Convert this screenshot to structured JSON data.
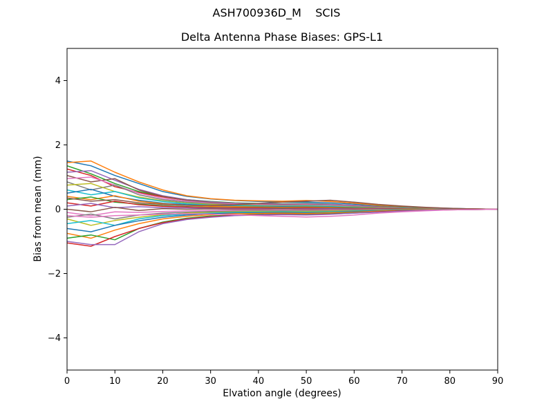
{
  "chart_data": {
    "type": "line",
    "suptitle": "ASH700936D_M    SCIS",
    "title": "Delta Antenna Phase Biases: GPS-L1",
    "xlabel": "Elvation angle (degrees)",
    "ylabel": "Bias from mean (mm)",
    "xlim": [
      0,
      90
    ],
    "ylim": [
      -5,
      5
    ],
    "xticks": [
      0,
      10,
      20,
      30,
      40,
      50,
      60,
      70,
      80,
      90
    ],
    "yticks": [
      -4,
      -2,
      0,
      2,
      4
    ],
    "grid": false,
    "legend": "none",
    "colors": [
      "#1f77b4",
      "#ff7f0e",
      "#2ca02c",
      "#d62728",
      "#9467bd",
      "#8c564b",
      "#e377c2",
      "#7f7f7f",
      "#bcbd22",
      "#17becf"
    ],
    "x": [
      0,
      5,
      10,
      15,
      20,
      25,
      30,
      35,
      40,
      45,
      50,
      55,
      60,
      65,
      70,
      75,
      80,
      85,
      90
    ],
    "series": [
      [
        1.5,
        1.35,
        1.05,
        0.8,
        0.55,
        0.4,
        0.32,
        0.27,
        0.24,
        0.22,
        0.22,
        0.2,
        0.16,
        0.12,
        0.08,
        0.05,
        0.03,
        0.01,
        0.0
      ],
      [
        1.45,
        1.5,
        1.15,
        0.85,
        0.6,
        0.42,
        0.33,
        0.28,
        0.26,
        0.25,
        0.27,
        0.24,
        0.19,
        0.13,
        0.09,
        0.05,
        0.02,
        0.01,
        0.0
      ],
      [
        1.35,
        1.1,
        0.8,
        0.55,
        0.4,
        0.3,
        0.24,
        0.2,
        0.18,
        0.17,
        0.18,
        0.16,
        0.12,
        0.09,
        0.06,
        0.04,
        0.02,
        0.01,
        0.0
      ],
      [
        1.25,
        1.05,
        0.7,
        0.52,
        0.38,
        0.28,
        0.22,
        0.18,
        0.16,
        0.15,
        0.16,
        0.14,
        0.11,
        0.08,
        0.05,
        0.03,
        0.02,
        0.01,
        0.0
      ],
      [
        1.15,
        1.2,
        0.9,
        0.62,
        0.42,
        0.3,
        0.23,
        0.19,
        0.17,
        0.16,
        0.17,
        0.15,
        0.12,
        0.08,
        0.05,
        0.03,
        0.01,
        0.0,
        0.0
      ],
      [
        1.05,
        0.85,
        0.95,
        0.6,
        0.4,
        0.28,
        0.21,
        0.17,
        0.15,
        0.14,
        0.15,
        0.13,
        0.1,
        0.07,
        0.05,
        0.03,
        0.01,
        0.0,
        0.0
      ],
      [
        0.95,
        1.0,
        0.75,
        0.5,
        0.34,
        0.25,
        0.19,
        0.16,
        0.14,
        0.13,
        0.14,
        0.12,
        0.09,
        0.06,
        0.04,
        0.02,
        0.01,
        0.0,
        0.0
      ],
      [
        0.85,
        0.6,
        0.75,
        0.45,
        0.3,
        0.22,
        0.17,
        0.14,
        0.12,
        0.11,
        0.12,
        0.1,
        0.08,
        0.05,
        0.03,
        0.02,
        0.01,
        0.0,
        0.0
      ],
      [
        0.75,
        0.8,
        0.55,
        0.38,
        0.26,
        0.19,
        0.15,
        0.12,
        0.11,
        0.1,
        0.11,
        0.1,
        0.07,
        0.05,
        0.03,
        0.02,
        0.01,
        0.0,
        0.0
      ],
      [
        0.6,
        0.45,
        0.55,
        0.35,
        0.24,
        0.17,
        0.13,
        0.11,
        0.1,
        0.09,
        0.1,
        0.09,
        0.06,
        0.04,
        0.03,
        0.01,
        0.01,
        0.0,
        0.0
      ],
      [
        0.5,
        0.62,
        0.4,
        0.28,
        0.19,
        0.14,
        0.11,
        0.09,
        0.08,
        0.08,
        0.08,
        0.07,
        0.05,
        0.04,
        0.02,
        0.01,
        0.0,
        0.0,
        0.0
      ],
      [
        0.4,
        0.3,
        0.42,
        0.25,
        0.17,
        0.12,
        0.09,
        0.08,
        0.07,
        0.06,
        0.07,
        0.06,
        0.04,
        0.03,
        0.02,
        0.01,
        0.0,
        0.0,
        0.0
      ],
      [
        0.3,
        0.38,
        0.22,
        0.16,
        0.11,
        0.08,
        0.06,
        0.05,
        0.05,
        0.04,
        0.05,
        0.04,
        0.03,
        0.02,
        0.01,
        0.01,
        0.0,
        0.0,
        0.0
      ],
      [
        0.2,
        0.1,
        0.25,
        0.14,
        0.09,
        0.07,
        0.05,
        0.04,
        0.04,
        0.03,
        0.04,
        0.03,
        0.02,
        0.02,
        0.01,
        0.0,
        0.0,
        0.0,
        0.0
      ],
      [
        0.1,
        0.18,
        0.05,
        0.08,
        0.05,
        0.04,
        0.03,
        0.02,
        0.02,
        0.02,
        0.02,
        0.02,
        0.01,
        0.01,
        0.0,
        0.0,
        0.0,
        0.0,
        0.0
      ],
      [
        0.0,
        -0.08,
        0.06,
        -0.04,
        0.02,
        0.0,
        0.01,
        0.0,
        0.0,
        0.01,
        0.0,
        0.0,
        0.0,
        0.0,
        0.0,
        0.0,
        0.0,
        0.0,
        0.0
      ],
      [
        -0.1,
        -0.2,
        -0.08,
        -0.1,
        -0.07,
        -0.05,
        -0.04,
        -0.03,
        -0.03,
        -0.03,
        -0.03,
        -0.02,
        -0.02,
        -0.01,
        -0.01,
        0.0,
        0.0,
        0.0,
        0.0
      ],
      [
        -0.25,
        -0.15,
        -0.3,
        -0.18,
        -0.12,
        -0.09,
        -0.07,
        -0.06,
        -0.05,
        -0.05,
        -0.05,
        -0.04,
        -0.03,
        -0.02,
        -0.01,
        -0.01,
        0.0,
        0.0,
        0.0
      ],
      [
        -0.3,
        -0.5,
        -0.35,
        -0.25,
        -0.17,
        -0.12,
        -0.1,
        -0.08,
        -0.07,
        -0.07,
        -0.07,
        -0.06,
        -0.05,
        -0.03,
        -0.02,
        -0.01,
        -0.01,
        0.0,
        0.0
      ],
      [
        -0.45,
        -0.35,
        -0.5,
        -0.3,
        -0.2,
        -0.15,
        -0.12,
        -0.1,
        -0.09,
        -0.08,
        -0.09,
        -0.08,
        -0.06,
        -0.04,
        -0.03,
        -0.02,
        -0.01,
        0.0,
        0.0
      ],
      [
        -0.6,
        -0.7,
        -0.5,
        -0.36,
        -0.25,
        -0.18,
        -0.14,
        -0.12,
        -0.11,
        -0.1,
        -0.11,
        -0.1,
        -0.07,
        -0.05,
        -0.03,
        -0.02,
        -0.01,
        0.0,
        0.0
      ],
      [
        -0.75,
        -0.9,
        -0.65,
        -0.45,
        -0.3,
        -0.22,
        -0.17,
        -0.14,
        -0.13,
        -0.12,
        -0.13,
        -0.11,
        -0.09,
        -0.06,
        -0.04,
        -0.02,
        -0.01,
        0.0,
        0.0
      ],
      [
        -0.9,
        -0.8,
        -0.95,
        -0.6,
        -0.4,
        -0.28,
        -0.21,
        -0.18,
        -0.16,
        -0.15,
        -0.16,
        -0.14,
        -0.11,
        -0.08,
        -0.05,
        -0.03,
        -0.01,
        -0.01,
        0.0
      ],
      [
        -1.05,
        -1.15,
        -0.85,
        -0.6,
        -0.42,
        -0.3,
        -0.23,
        -0.19,
        -0.17,
        -0.16,
        -0.17,
        -0.15,
        -0.12,
        -0.08,
        -0.05,
        -0.03,
        -0.02,
        -0.01,
        0.0
      ],
      [
        -1.0,
        -1.1,
        -1.1,
        -0.7,
        -0.45,
        -0.32,
        -0.25,
        -0.2,
        -0.18,
        -0.17,
        -0.18,
        -0.16,
        -0.12,
        -0.09,
        -0.06,
        -0.03,
        -0.02,
        -0.01,
        0.0
      ],
      [
        0.35,
        0.25,
        0.3,
        0.2,
        0.15,
        0.12,
        0.12,
        0.14,
        0.18,
        0.22,
        0.25,
        0.28,
        0.22,
        0.15,
        0.1,
        0.06,
        0.03,
        0.01,
        0.0
      ],
      [
        -0.2,
        -0.25,
        -0.2,
        -0.18,
        -0.15,
        -0.14,
        -0.15,
        -0.17,
        -0.2,
        -0.22,
        -0.24,
        -0.22,
        -0.18,
        -0.12,
        -0.08,
        -0.05,
        -0.02,
        -0.01,
        0.0
      ]
    ]
  }
}
